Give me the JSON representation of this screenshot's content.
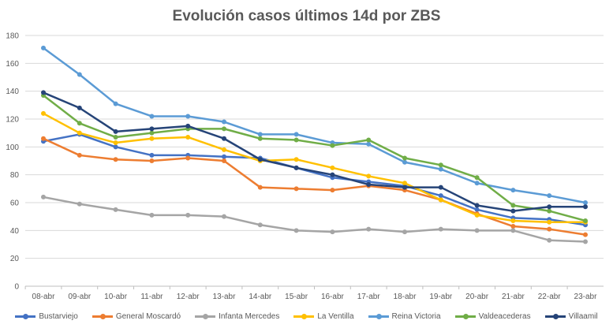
{
  "chart_data": {
    "type": "line",
    "title": "Evolución casos últimos 14d por ZBS",
    "xlabel": "",
    "ylabel": "",
    "ylim": [
      0,
      180
    ],
    "yticks": [
      0,
      20,
      40,
      60,
      80,
      100,
      120,
      140,
      160,
      180
    ],
    "grid": true,
    "legend": "bottom",
    "categories": [
      "08-abr",
      "09-abr",
      "10-abr",
      "11-abr",
      "12-abr",
      "13-abr",
      "14-abr",
      "15-abr",
      "16-abr",
      "17-abr",
      "18-abr",
      "19-abr",
      "20-abr",
      "21-abr",
      "22-abr",
      "23-abr"
    ],
    "series": [
      {
        "name": "Bustarviejo",
        "color": "#4472C4",
        "values": [
          104,
          109,
          100,
          94,
          94,
          93,
          92,
          85,
          78,
          75,
          72,
          65,
          55,
          49,
          48,
          44
        ]
      },
      {
        "name": "General Moscardó",
        "color": "#ED7D31",
        "values": [
          106,
          94,
          91,
          90,
          92,
          90,
          71,
          70,
          69,
          72,
          69,
          62,
          52,
          43,
          41,
          37
        ]
      },
      {
        "name": "Infanta Mercedes",
        "color": "#A5A5A5",
        "values": [
          64,
          59,
          55,
          51,
          51,
          50,
          44,
          40,
          39,
          41,
          39,
          41,
          40,
          40,
          33,
          32
        ]
      },
      {
        "name": "La Ventilla",
        "color": "#FFC000",
        "values": [
          124,
          110,
          103,
          106,
          107,
          98,
          90,
          91,
          85,
          79,
          74,
          62,
          51,
          47,
          46,
          46
        ]
      },
      {
        "name": "Reina Victoria",
        "color": "#5B9BD5",
        "values": [
          171,
          152,
          131,
          122,
          122,
          118,
          109,
          109,
          103,
          102,
          89,
          84,
          74,
          69,
          65,
          60
        ]
      },
      {
        "name": "Valdeacederas",
        "color": "#70AD47",
        "values": [
          137,
          117,
          107,
          110,
          113,
          113,
          106,
          105,
          101,
          105,
          92,
          87,
          78,
          58,
          54,
          47
        ]
      },
      {
        "name": "Villaamil",
        "color": "#264478",
        "values": [
          139,
          128,
          111,
          113,
          115,
          106,
          91,
          85,
          80,
          73,
          71,
          71,
          58,
          54,
          57,
          57
        ]
      }
    ]
  }
}
